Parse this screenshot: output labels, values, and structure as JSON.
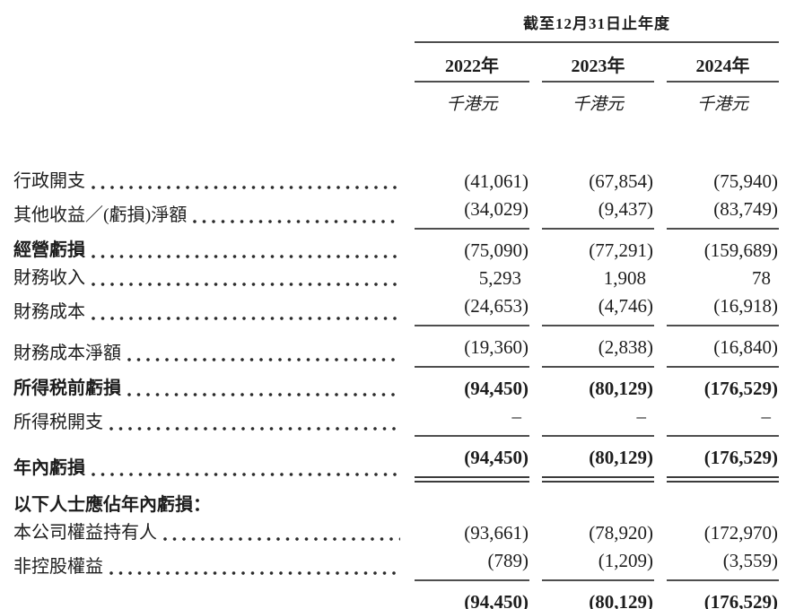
{
  "table": {
    "header": {
      "period_title": "截至12月31日止年度",
      "columns": [
        {
          "year": "2022年",
          "unit": "千港元"
        },
        {
          "year": "2023年",
          "unit": "千港元"
        },
        {
          "year": "2024年",
          "unit": "千港元"
        }
      ]
    },
    "rules_color": "#4e4e4e",
    "text_color": "#1d1d1d",
    "rows": [
      {
        "label": "行政開支",
        "values": [
          "(41,061)",
          "(67,854)",
          "(75,940)"
        ]
      },
      {
        "label": "其他收益／(虧損)淨額",
        "values": [
          "(34,029)",
          "(9,437)",
          "(83,749)"
        ],
        "rule_below": "single"
      },
      {
        "label": "經營虧損",
        "bold_label": true,
        "values": [
          "(75,090)",
          "(77,291)",
          "(159,689)"
        ]
      },
      {
        "label": "財務收入",
        "values": [
          "5,293",
          "1,908",
          "78"
        ]
      },
      {
        "label": "財務成本",
        "values": [
          "(24,653)",
          "(4,746)",
          "(16,918)"
        ],
        "rule_below": "single"
      },
      {
        "label": "財務成本淨額",
        "values": [
          "(19,360)",
          "(2,838)",
          "(16,840)"
        ],
        "rule_below": "single"
      },
      {
        "label": "所得税前虧損",
        "bold_label": true,
        "bold_values": true,
        "values": [
          "(94,450)",
          "(80,129)",
          "(176,529)"
        ]
      },
      {
        "label": "所得税開支",
        "values": [
          "–",
          "–",
          "–"
        ],
        "rule_below": "single"
      },
      {
        "label": "年內虧損",
        "bold_label": true,
        "bold_values": true,
        "values": [
          "(94,450)",
          "(80,129)",
          "(176,529)"
        ],
        "rule_below": "double"
      },
      {
        "label": "以下人士應佔年內虧損：",
        "bold_label": true,
        "leader": false,
        "section_header": true,
        "values": [
          "",
          "",
          ""
        ]
      },
      {
        "label": "本公司權益持有人",
        "values": [
          "(93,661)",
          "(78,920)",
          "(172,970)"
        ]
      },
      {
        "label": "非控股權益",
        "values": [
          "(789)",
          "(1,209)",
          "(3,559)"
        ],
        "rule_below": "single"
      },
      {
        "label": "",
        "leader": false,
        "bold_values": true,
        "values": [
          "(94,450)",
          "(80,129)",
          "(176,529)"
        ],
        "rule_below": "double"
      }
    ]
  }
}
